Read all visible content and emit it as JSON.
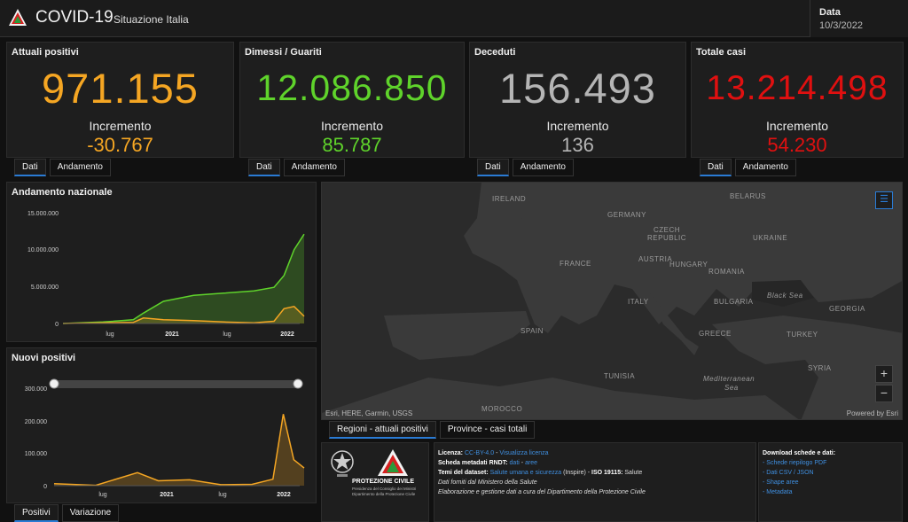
{
  "header": {
    "title": "COVID-19",
    "subtitle": "Situazione Italia",
    "date_label": "Data",
    "date_value": "10/3/2022"
  },
  "kpis": [
    {
      "title": "Attuali positivi",
      "value": "971.155",
      "increment_label": "Incremento",
      "increment": "-30.767",
      "color": "#f5a623"
    },
    {
      "title": "Dimessi / Guariti",
      "value": "12.086.850",
      "increment_label": "Incremento",
      "increment": "85.787",
      "color": "#5fd32b"
    },
    {
      "title": "Deceduti",
      "value": "156.493",
      "increment_label": "Incremento",
      "increment": "136",
      "color": "#b5b5b5"
    },
    {
      "title": "Totale casi",
      "value": "13.214.498",
      "increment_label": "Incremento",
      "increment": "54.230",
      "color": "#e01010"
    }
  ],
  "kpi_tabs": [
    "Dati",
    "Andamento"
  ],
  "andamento": {
    "title": "Andamento nazionale",
    "y_ticks": [
      "15.000.000",
      "10.000.000",
      "5.000.000",
      "0"
    ],
    "x_ticks": [
      "lug",
      "2021",
      "lug",
      "2022"
    ]
  },
  "nuovi": {
    "title": "Nuovi positivi",
    "y_ticks": [
      "300.000",
      "200.000",
      "100.000",
      "0"
    ],
    "x_ticks": [
      "lug",
      "2021",
      "lug",
      "2022"
    ],
    "tabs": [
      "Positivi",
      "Variazione"
    ]
  },
  "chart_data": [
    {
      "type": "area",
      "title": "Andamento nazionale",
      "x": [
        "2020-03",
        "2020-07",
        "2020-10",
        "2020-11",
        "2021-01",
        "2021-04",
        "2021-07",
        "2021-10",
        "2021-12",
        "2022-01",
        "2022-02",
        "2022-03"
      ],
      "ylim": [
        0,
        15000000
      ],
      "series": [
        {
          "color": "#5fd32b",
          "values": [
            0,
            200000,
            500000,
            1400000,
            3000000,
            3800000,
            4100000,
            4400000,
            4900000,
            6500000,
            10000000,
            12100000
          ]
        },
        {
          "color": "#f5a623",
          "values": [
            0,
            100000,
            150000,
            750000,
            500000,
            400000,
            200000,
            100000,
            300000,
            2000000,
            2300000,
            971155
          ]
        }
      ]
    },
    {
      "type": "area",
      "title": "Nuovi positivi",
      "x": [
        "2020-03",
        "2020-07",
        "2020-11",
        "2021-01",
        "2021-04",
        "2021-07",
        "2021-10",
        "2021-12",
        "2022-01",
        "2022-02",
        "2022-03"
      ],
      "ylim": [
        0,
        300000
      ],
      "series": [
        {
          "color": "#f5a623",
          "values": [
            6000,
            1000,
            40000,
            15000,
            18000,
            3000,
            4000,
            20000,
            220000,
            80000,
            54230
          ]
        }
      ]
    }
  ],
  "map": {
    "labels": [
      "IRELAND",
      "GERMANY",
      "CZECH",
      "REPUBLIC",
      "BELARUS",
      "UKRAINE",
      "FRANCE",
      "AUSTRIA",
      "HUNGARY",
      "ROMANIA",
      "Black Sea",
      "BULGARIA",
      "ITALY",
      "GEORGIA",
      "SPAIN",
      "GREECE",
      "TURKEY",
      "TUNISIA",
      "Mediterranean",
      "Sea",
      "SYRIA",
      "MOROCCO"
    ],
    "attribution": "Esri, HERE, Garmin, USGS",
    "powered": "Powered by Esri",
    "zoom_in": "+",
    "zoom_out": "−"
  },
  "map_tabs": [
    "Regioni - attuali positivi",
    "Province - casi totali"
  ],
  "org": {
    "name": "PROTEZIONE CIVILE",
    "sub1": "Presidenza del Consiglio dei Ministri",
    "sub2": "Dipartimento della Protezione Civile"
  },
  "info": {
    "lic_label": "Licenza:",
    "lic_link": "CC-BY-4.0",
    "lic_sep": " - ",
    "lic_view": "Visualizza licenza",
    "meta_label": "Scheda metadati RNDT:",
    "meta_link": "dati",
    "meta_sep": " - ",
    "meta_link2": "aree",
    "temi_label": "Temi del dataset:",
    "temi_link": "Salute umana e sicurezza",
    "temi_rest": " (Inspire) - ",
    "iso_label": "ISO 19115:",
    "iso_val": " Salute",
    "fonte": "Dati forniti dal Ministero della Salute",
    "elab": "Elaborazione e gestione dati a cura del Dipartimento della Protezione Civile"
  },
  "downloads": {
    "title": "Download schede e dati:",
    "items": [
      "Schede riepilogo PDF",
      "Dati CSV / JSON",
      "Shape aree",
      "Metadata"
    ]
  }
}
